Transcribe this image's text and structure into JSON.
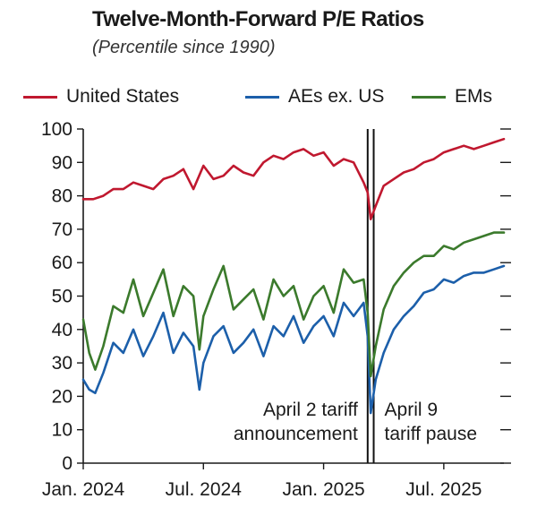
{
  "chart_data": {
    "type": "line",
    "title": "Twelve-Month-Forward P/E Ratios",
    "subtitle": "(Percentile since 1990)",
    "xlabel": "",
    "ylabel": "",
    "xlim": [
      0,
      21
    ],
    "ylim": [
      0,
      100
    ],
    "y_ticks": [
      0,
      10,
      20,
      30,
      40,
      50,
      60,
      70,
      80,
      90,
      100
    ],
    "x_ticks": [
      {
        "label": "Jan. 2024",
        "x": 0
      },
      {
        "label": "Jul. 2024",
        "x": 6
      },
      {
        "label": "Jan. 2025",
        "x": 12
      },
      {
        "label": "Jul. 2025",
        "x": 18
      }
    ],
    "grid": false,
    "legend_position": "top",
    "colors": {
      "United States": "#c0182f",
      "AEs ex. US": "#1c5faa",
      "EMs": "#3b7a2c"
    },
    "series": [
      {
        "name": "United States",
        "x": [
          0,
          0.5,
          1,
          1.5,
          2,
          2.5,
          3,
          3.5,
          4,
          4.5,
          5,
          5.5,
          6,
          6.5,
          7,
          7.5,
          8,
          8.5,
          9,
          9.5,
          10,
          10.5,
          11,
          11.5,
          12,
          12.5,
          13,
          13.5,
          14,
          14.2,
          14.35,
          14.6,
          15,
          15.5,
          16,
          16.5,
          17,
          17.5,
          18,
          18.5,
          19,
          19.5,
          20,
          20.5,
          21
        ],
        "values": [
          79,
          79,
          80,
          82,
          82,
          84,
          83,
          82,
          85,
          86,
          88,
          82,
          89,
          85,
          86,
          89,
          87,
          86,
          90,
          92,
          91,
          93,
          94,
          92,
          93,
          89,
          91,
          90,
          84,
          81,
          73,
          77,
          83,
          85,
          87,
          88,
          90,
          91,
          93,
          94,
          95,
          94,
          95,
          96,
          97
        ]
      },
      {
        "name": "AEs ex. US",
        "x": [
          0,
          0.3,
          0.6,
          1,
          1.5,
          2,
          2.5,
          3,
          3.5,
          4,
          4.5,
          5,
          5.5,
          5.8,
          6,
          6.5,
          7,
          7.5,
          8,
          8.5,
          9,
          9.5,
          10,
          10.5,
          11,
          11.5,
          12,
          12.5,
          13,
          13.5,
          14,
          14.2,
          14.35,
          14.6,
          15,
          15.5,
          16,
          16.5,
          17,
          17.5,
          18,
          18.5,
          19,
          19.5,
          20,
          20.5,
          21
        ],
        "values": [
          25,
          22,
          21,
          27,
          36,
          33,
          40,
          32,
          38,
          45,
          33,
          39,
          35,
          22,
          30,
          38,
          41,
          33,
          36,
          40,
          32,
          41,
          38,
          44,
          36,
          41,
          44,
          38,
          48,
          44,
          48,
          38,
          15,
          25,
          33,
          40,
          44,
          47,
          51,
          52,
          55,
          54,
          56,
          57,
          57,
          58,
          59
        ]
      },
      {
        "name": "EMs",
        "x": [
          0,
          0.3,
          0.6,
          1,
          1.5,
          2,
          2.5,
          3,
          3.5,
          4,
          4.5,
          5,
          5.5,
          5.8,
          6,
          6.5,
          7,
          7.5,
          8,
          8.5,
          9,
          9.5,
          10,
          10.5,
          11,
          11.5,
          12,
          12.5,
          13,
          13.5,
          14,
          14.2,
          14.35,
          14.6,
          15,
          15.5,
          16,
          16.5,
          17,
          17.5,
          18,
          18.5,
          19,
          19.5,
          20,
          20.5,
          21
        ],
        "values": [
          43,
          33,
          28,
          35,
          47,
          45,
          55,
          44,
          51,
          58,
          44,
          53,
          50,
          34,
          44,
          52,
          59,
          46,
          49,
          52,
          43,
          55,
          50,
          53,
          43,
          50,
          53,
          45,
          58,
          54,
          55,
          45,
          26,
          35,
          46,
          53,
          57,
          60,
          62,
          62,
          65,
          64,
          66,
          67,
          68,
          69,
          69
        ]
      }
    ],
    "annotations": [
      {
        "x": 14.2,
        "label_lines": [
          "April 2 tariff",
          "announcement"
        ],
        "align": "left"
      },
      {
        "x": 14.5,
        "label_lines": [
          "April 9",
          "tariff pause"
        ],
        "align": "right"
      }
    ]
  }
}
